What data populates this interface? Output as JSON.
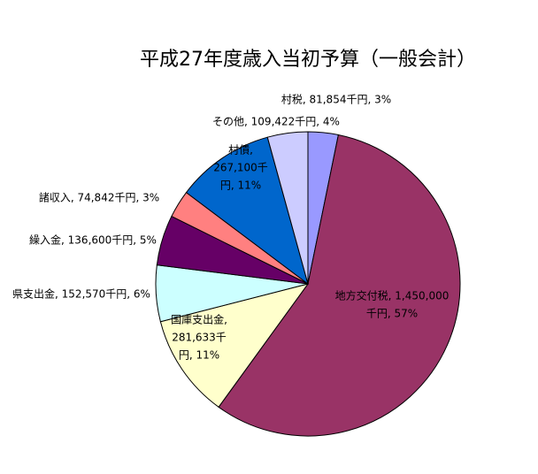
{
  "chart_data": {
    "type": "pie",
    "title": "平成27年度歳入当初予算（一般会計）",
    "values": [
      81854,
      1450000,
      281633,
      152570,
      136600,
      74842,
      267100,
      109422
    ],
    "value_labels": [
      [
        "村税, 81,854千円, 3%"
      ],
      [
        "地方交付税, 1,450,000",
        "千円, 57%"
      ],
      [
        "国庫支出金,",
        "281,633千",
        "円, 11%"
      ],
      [
        "県支出金, 152,570千円, 6%"
      ],
      [
        "繰入金, 136,600千円, 5%"
      ],
      [
        "諸収入, 74,842千円, 3%"
      ],
      [
        "村債,",
        "267,100千",
        "円, 11%"
      ],
      [
        "その他, 109,422千円, 4%"
      ]
    ],
    "colors": [
      "#9999ff",
      "#993366",
      "#ffffcc",
      "#ccffff",
      "#660066",
      "#ff8080",
      "#0066cc",
      "#ccccff"
    ]
  }
}
